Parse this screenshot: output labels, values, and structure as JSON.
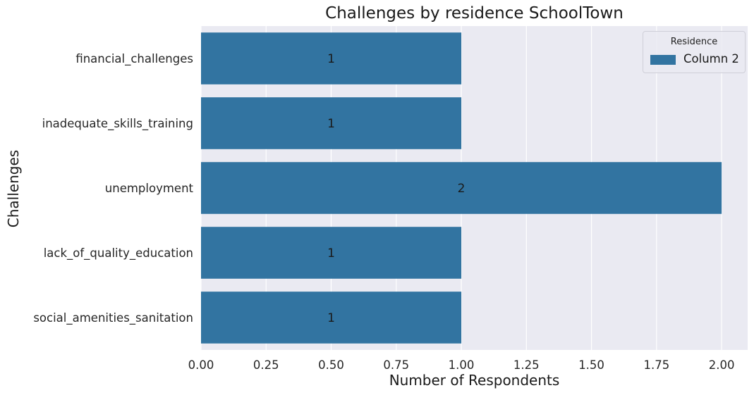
{
  "chart_data": {
    "type": "bar",
    "orientation": "horizontal",
    "title": "Challenges by residence SchoolTown",
    "xlabel": "Number of Respondents",
    "ylabel": "Challenges",
    "categories": [
      "financial_challenges",
      "inadequate_skills_training",
      "unemployment",
      "lack_of_quality_education",
      "social_amenities_sanitation"
    ],
    "series": [
      {
        "name": "Column 2",
        "values": [
          1,
          1,
          2,
          1,
          1
        ],
        "color": "#3274a1"
      }
    ],
    "data_labels": [
      "1",
      "1",
      "2",
      "1",
      "1"
    ],
    "xlim": [
      0,
      2.1
    ],
    "xticks": [
      "0.00",
      "0.25",
      "0.50",
      "0.75",
      "1.00",
      "1.25",
      "1.50",
      "1.75",
      "2.00"
    ],
    "grid": true,
    "legend": {
      "title": "Residence",
      "position": "top-right"
    },
    "background_color": "#eaeaf2"
  }
}
